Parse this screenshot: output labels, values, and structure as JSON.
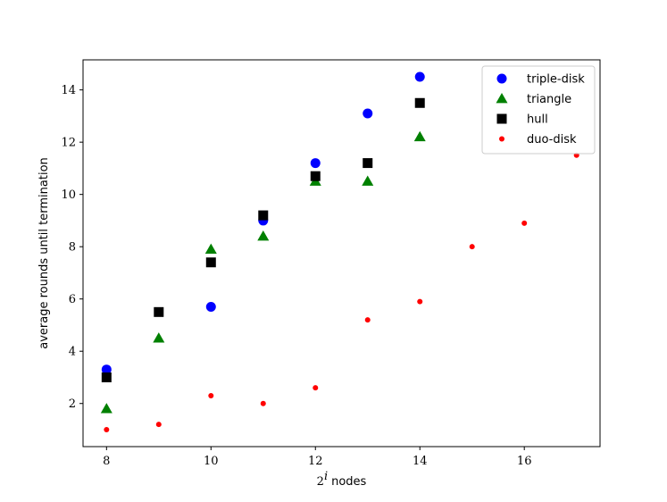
{
  "chart_data": {
    "type": "scatter",
    "title": "",
    "xlabel": "nodes",
    "xlabel_base": "2",
    "xlabel_exp": "i",
    "ylabel": "average rounds until termination",
    "xlim": [
      7.55,
      17.45
    ],
    "ylim": [
      0.35,
      15.15
    ],
    "xticks": [
      8,
      10,
      12,
      14,
      16
    ],
    "yticks": [
      2,
      4,
      6,
      8,
      10,
      12,
      14
    ],
    "grid": false,
    "legend_position": "top-right",
    "series": [
      {
        "name": "triple-disk",
        "marker": "circle",
        "color": "#0000ff",
        "x": [
          8,
          10,
          11,
          12,
          13,
          14
        ],
        "y": [
          3.3,
          5.7,
          9.0,
          11.2,
          13.1,
          14.5
        ]
      },
      {
        "name": "triangle",
        "marker": "triangle",
        "color": "#008000",
        "x": [
          8,
          9,
          10,
          11,
          12,
          13,
          14
        ],
        "y": [
          1.8,
          4.5,
          7.9,
          8.4,
          10.5,
          10.5,
          12.2
        ]
      },
      {
        "name": "hull",
        "marker": "square",
        "color": "#000000",
        "x": [
          8,
          9,
          10,
          11,
          12,
          13,
          14
        ],
        "y": [
          3.0,
          5.5,
          7.4,
          9.2,
          10.7,
          11.2,
          13.5
        ]
      },
      {
        "name": "duo-disk",
        "marker": "small-circle",
        "color": "#ff0000",
        "x": [
          8,
          9,
          10,
          11,
          12,
          13,
          14,
          15,
          16,
          17
        ],
        "y": [
          1.0,
          1.2,
          2.3,
          2.0,
          2.6,
          5.2,
          5.9,
          8.0,
          8.9,
          11.5
        ]
      }
    ]
  }
}
